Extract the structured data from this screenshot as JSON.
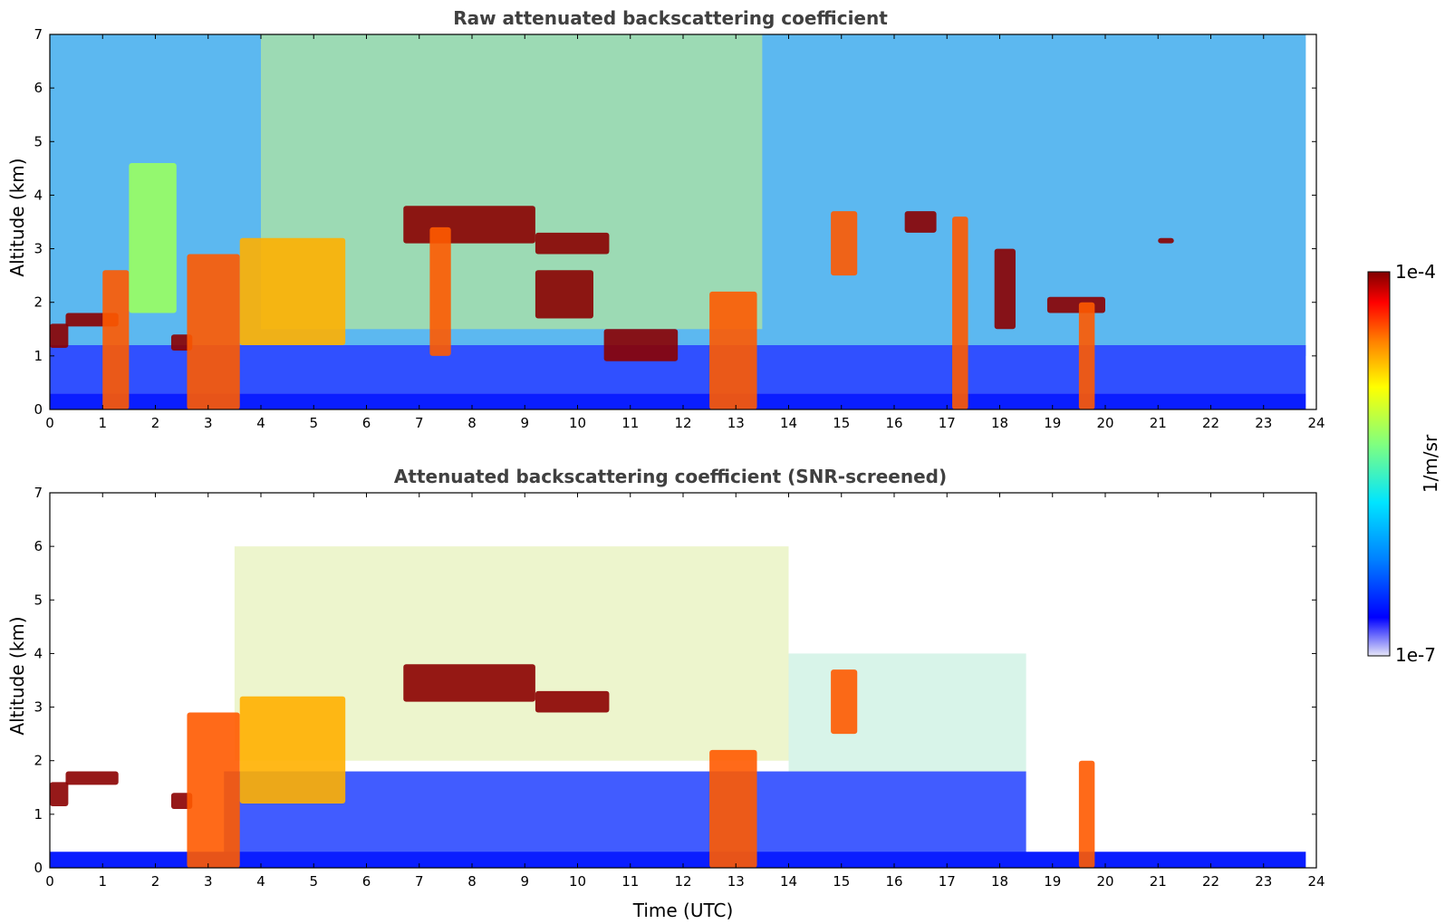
{
  "chart_data": [
    {
      "type": "heatmap",
      "title": "Raw attenuated backscattering coefficient",
      "xlabel": "",
      "ylabel": "Altitude (km)",
      "xlim": [
        0,
        24
      ],
      "ylim": [
        0,
        7
      ],
      "x_data_end": 23.8,
      "x_ticks": [
        "0",
        "1",
        "2",
        "3",
        "4",
        "5",
        "6",
        "7",
        "8",
        "9",
        "10",
        "11",
        "12",
        "13",
        "14",
        "15",
        "16",
        "17",
        "18",
        "19",
        "20",
        "21",
        "22",
        "23",
        "24"
      ],
      "y_ticks": [
        "0",
        "1",
        "2",
        "3",
        "4",
        "5",
        "6",
        "7"
      ],
      "features": [
        {
          "t": [
            0.0,
            0.35
          ],
          "z": [
            1.15,
            1.6
          ],
          "level": "very-high"
        },
        {
          "t": [
            0.3,
            1.3
          ],
          "z": [
            1.55,
            1.8
          ],
          "level": "very-high"
        },
        {
          "t": [
            1.0,
            1.5
          ],
          "z": [
            0.0,
            2.6
          ],
          "level": "high"
        },
        {
          "t": [
            1.5,
            2.4
          ],
          "z": [
            1.8,
            4.6
          ],
          "level": "medium"
        },
        {
          "t": [
            2.3,
            2.7
          ],
          "z": [
            1.1,
            1.4
          ],
          "level": "very-high"
        },
        {
          "t": [
            2.6,
            3.6
          ],
          "z": [
            0.0,
            2.9
          ],
          "level": "high"
        },
        {
          "t": [
            3.6,
            5.6
          ],
          "z": [
            1.2,
            3.2
          ],
          "level": "medium-high"
        },
        {
          "t": [
            6.7,
            9.2
          ],
          "z": [
            3.1,
            3.8
          ],
          "level": "very-high"
        },
        {
          "t": [
            9.2,
            10.6
          ],
          "z": [
            2.9,
            3.3
          ],
          "level": "very-high"
        },
        {
          "t": [
            7.2,
            7.6
          ],
          "z": [
            1.0,
            3.4
          ],
          "level": "high"
        },
        {
          "t": [
            9.2,
            10.3
          ],
          "z": [
            1.7,
            2.6
          ],
          "level": "very-high"
        },
        {
          "t": [
            10.5,
            11.9
          ],
          "z": [
            0.9,
            1.5
          ],
          "level": "very-high"
        },
        {
          "t": [
            12.5,
            13.4
          ],
          "z": [
            0.0,
            2.2
          ],
          "level": "high"
        },
        {
          "t": [
            14.8,
            15.3
          ],
          "z": [
            2.5,
            3.7
          ],
          "level": "high"
        },
        {
          "t": [
            16.2,
            16.8
          ],
          "z": [
            3.3,
            3.7
          ],
          "level": "very-high"
        },
        {
          "t": [
            17.1,
            17.4
          ],
          "z": [
            0.0,
            3.6
          ],
          "level": "high"
        },
        {
          "t": [
            17.9,
            18.3
          ],
          "z": [
            1.5,
            3.0
          ],
          "level": "very-high"
        },
        {
          "t": [
            18.9,
            20.0
          ],
          "z": [
            1.8,
            2.1
          ],
          "level": "very-high"
        },
        {
          "t": [
            19.5,
            19.8
          ],
          "z": [
            0.0,
            2.0
          ],
          "level": "high"
        },
        {
          "t": [
            21.0,
            21.3
          ],
          "z": [
            3.1,
            3.2
          ],
          "level": "very-high"
        }
      ]
    },
    {
      "type": "heatmap",
      "title": "Attenuated backscattering coefficient (SNR-screened)",
      "xlabel": "Time (UTC)",
      "ylabel": "Altitude (km)",
      "xlim": [
        0,
        24
      ],
      "ylim": [
        0,
        7
      ],
      "x_data_end": 23.8,
      "x_ticks": [
        "0",
        "1",
        "2",
        "3",
        "4",
        "5",
        "6",
        "7",
        "8",
        "9",
        "10",
        "11",
        "12",
        "13",
        "14",
        "15",
        "16",
        "17",
        "18",
        "19",
        "20",
        "21",
        "22",
        "23",
        "24"
      ],
      "y_ticks": [
        "0",
        "1",
        "2",
        "3",
        "4",
        "5",
        "6",
        "7"
      ],
      "features": [
        {
          "t": [
            0.0,
            0.35
          ],
          "z": [
            1.15,
            1.6
          ],
          "level": "very-high"
        },
        {
          "t": [
            0.3,
            1.3
          ],
          "z": [
            1.55,
            1.8
          ],
          "level": "very-high"
        },
        {
          "t": [
            2.3,
            2.7
          ],
          "z": [
            1.1,
            1.4
          ],
          "level": "very-high"
        },
        {
          "t": [
            2.6,
            3.6
          ],
          "z": [
            0.0,
            2.9
          ],
          "level": "high"
        },
        {
          "t": [
            3.6,
            5.6
          ],
          "z": [
            1.2,
            3.2
          ],
          "level": "medium-high"
        },
        {
          "t": [
            6.7,
            9.2
          ],
          "z": [
            3.1,
            3.8
          ],
          "level": "very-high"
        },
        {
          "t": [
            9.2,
            10.6
          ],
          "z": [
            2.9,
            3.3
          ],
          "level": "very-high"
        },
        {
          "t": [
            12.5,
            13.4
          ],
          "z": [
            0.0,
            2.2
          ],
          "level": "high"
        },
        {
          "t": [
            14.8,
            15.3
          ],
          "z": [
            2.5,
            3.7
          ],
          "level": "high"
        },
        {
          "t": [
            19.5,
            19.8
          ],
          "z": [
            0.0,
            2.0
          ],
          "level": "high"
        }
      ]
    }
  ],
  "colorbar": {
    "label": "1/m/sr",
    "max_label": "1e-4",
    "min_label": "1e-7",
    "colormap": "jet",
    "colors": [
      "#e6e6f7",
      "#0000ff",
      "#0080ff",
      "#00e5ff",
      "#7fff80",
      "#ffff00",
      "#ff8000",
      "#ff0000",
      "#800000"
    ]
  }
}
